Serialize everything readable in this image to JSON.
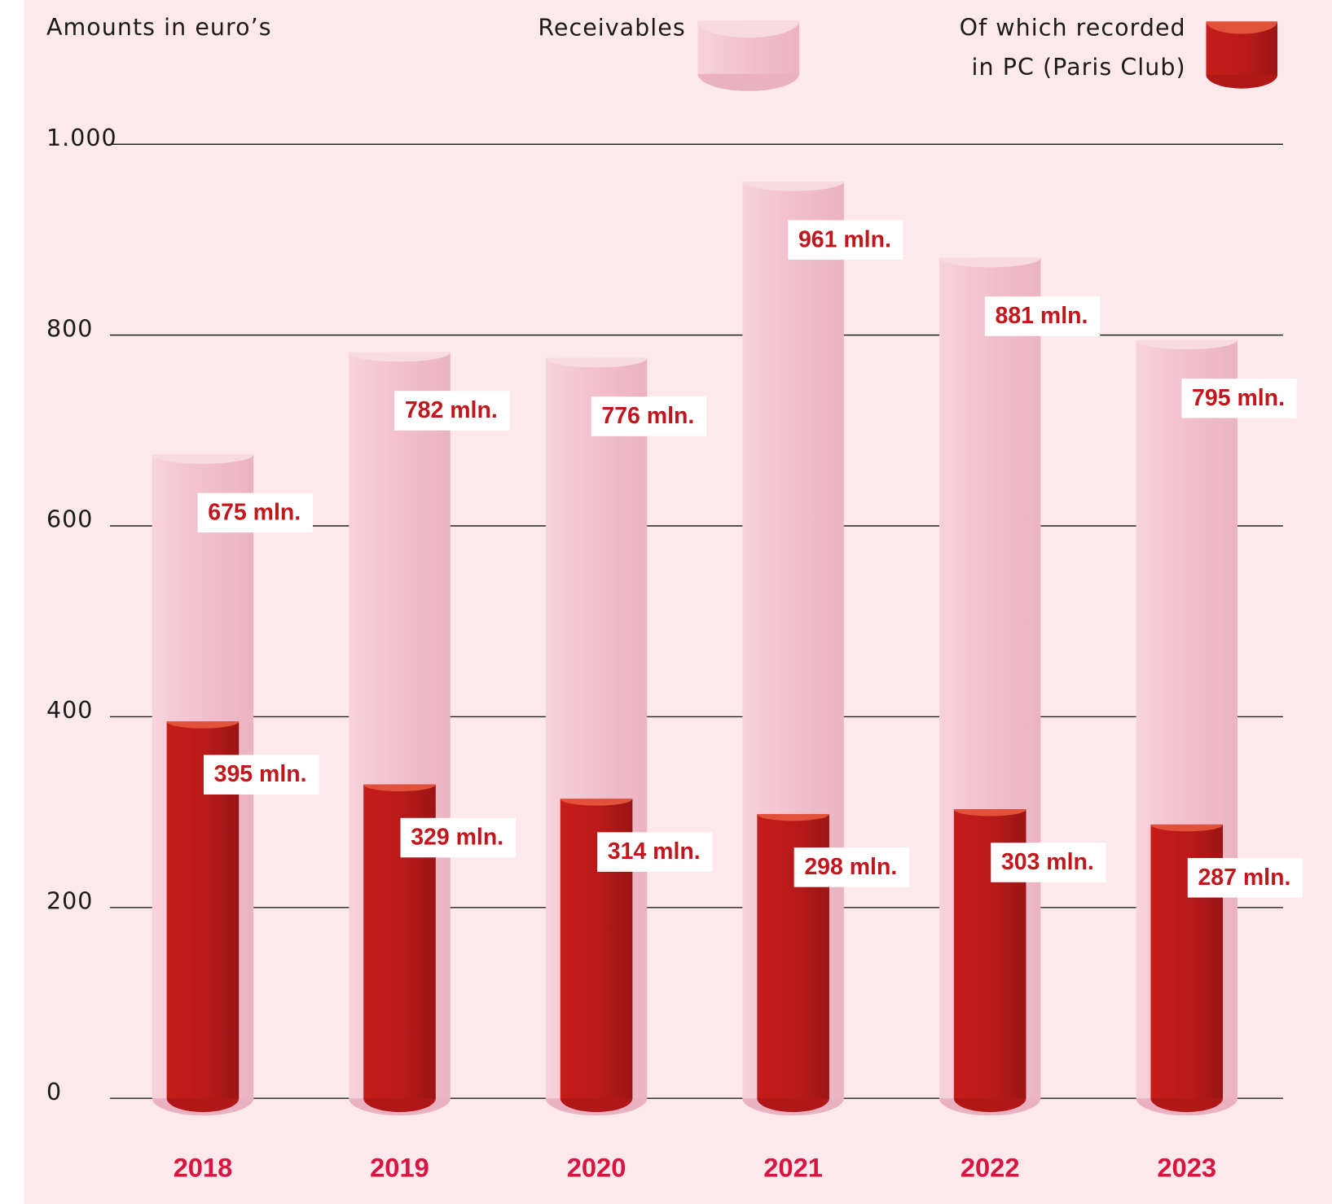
{
  "chart_data": {
    "type": "bar",
    "title": "Amounts in euro’s",
    "categories": [
      "2018",
      "2019",
      "2020",
      "2021",
      "2022",
      "2023"
    ],
    "series": [
      {
        "name": "Receivables",
        "color": "#f2c2cd",
        "values": [
          675,
          782,
          776,
          961,
          881,
          795
        ],
        "value_labels": [
          "675 mln.",
          "782 mln.",
          "776 mln.",
          "961 mln.",
          "881 mln.",
          "795 mln."
        ]
      },
      {
        "name": "Of which recorded in PC (Paris Club)",
        "color": "#b81a1a",
        "values": [
          395,
          329,
          314,
          298,
          303,
          287
        ],
        "value_labels": [
          "395 mln.",
          "329 mln.",
          "314 mln.",
          "298 mln.",
          "303 mln.",
          "287 mln."
        ]
      }
    ],
    "ylim": [
      0,
      1000
    ],
    "yticks": [
      0,
      200,
      400,
      600,
      800,
      {
        "value": 1000,
        "label": "1.000"
      }
    ],
    "grid": true
  }
}
